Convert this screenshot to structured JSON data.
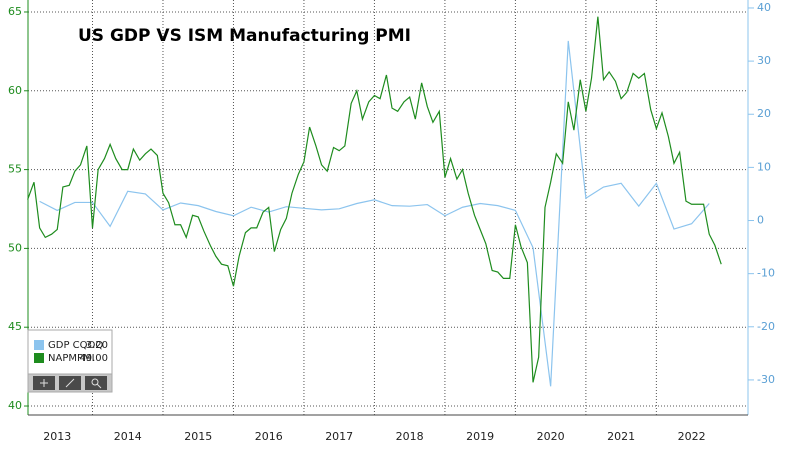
{
  "chart_data": {
    "type": "line",
    "title": "US GDP VS ISM Manufacturing PMI",
    "xlim": [
      2013.085,
      2023.3
    ],
    "xticks": [
      2013,
      2014,
      2015,
      2016,
      2017,
      2018,
      2019,
      2020,
      2021,
      2022
    ],
    "ylim": [
      39.43,
      65.76
    ],
    "yticks": [
      40,
      45,
      50,
      55,
      60,
      65
    ],
    "y2lim": [
      -36.6,
      41.5
    ],
    "y2ticks": [
      -30,
      -20,
      -10,
      0,
      10,
      20,
      30,
      40
    ],
    "grid": true,
    "legend": "lower left",
    "series": [
      {
        "name": "GDP CQOQ",
        "color": "#8cc4ee",
        "axis": "y2",
        "last_value_label": "3.20",
        "x": [
          2013.25,
          2013.5,
          2013.75,
          2014.0,
          2014.25,
          2014.5,
          2014.75,
          2015.0,
          2015.25,
          2015.5,
          2015.75,
          2016.0,
          2016.25,
          2016.5,
          2016.75,
          2017.0,
          2017.25,
          2017.5,
          2017.75,
          2018.0,
          2018.25,
          2018.5,
          2018.75,
          2019.0,
          2019.25,
          2019.5,
          2019.75,
          2020.0,
          2020.25,
          2020.5,
          2020.75,
          2021.0,
          2021.25,
          2021.5,
          2021.75,
          2022.0,
          2022.25,
          2022.5,
          2022.75
        ],
        "values": [
          3.6,
          1.9,
          3.4,
          3.4,
          -1.1,
          5.5,
          5.0,
          2.0,
          3.3,
          2.8,
          1.7,
          0.9,
          2.5,
          1.6,
          2.6,
          2.3,
          2.0,
          2.2,
          3.2,
          3.9,
          2.8,
          2.7,
          3.0,
          0.9,
          2.5,
          3.2,
          2.8,
          1.9,
          -5.1,
          -31.2,
          33.8,
          4.2,
          6.3,
          7.0,
          2.7,
          7.0,
          -1.6,
          -0.6,
          3.2
        ]
      },
      {
        "name": "NAPMPMI",
        "color": "#1e8c1e",
        "axis": "y",
        "last_value_label": "49.00",
        "x": [
          2013.08,
          2013.17,
          2013.25,
          2013.33,
          2013.42,
          2013.5,
          2013.58,
          2013.67,
          2013.75,
          2013.83,
          2013.92,
          2014.0,
          2014.08,
          2014.17,
          2014.25,
          2014.33,
          2014.42,
          2014.5,
          2014.58,
          2014.67,
          2014.75,
          2014.83,
          2014.92,
          2015.0,
          2015.08,
          2015.17,
          2015.25,
          2015.33,
          2015.42,
          2015.5,
          2015.58,
          2015.67,
          2015.75,
          2015.83,
          2015.92,
          2016.0,
          2016.08,
          2016.17,
          2016.25,
          2016.33,
          2016.42,
          2016.5,
          2016.58,
          2016.67,
          2016.75,
          2016.83,
          2016.92,
          2017.0,
          2017.08,
          2017.17,
          2017.25,
          2017.33,
          2017.42,
          2017.5,
          2017.58,
          2017.67,
          2017.75,
          2017.83,
          2017.92,
          2018.0,
          2018.08,
          2018.17,
          2018.25,
          2018.33,
          2018.42,
          2018.5,
          2018.58,
          2018.67,
          2018.75,
          2018.83,
          2018.92,
          2019.0,
          2019.08,
          2019.17,
          2019.25,
          2019.33,
          2019.42,
          2019.5,
          2019.58,
          2019.67,
          2019.75,
          2019.83,
          2019.92,
          2020.0,
          2020.08,
          2020.17,
          2020.25,
          2020.33,
          2020.42,
          2020.5,
          2020.58,
          2020.67,
          2020.75,
          2020.83,
          2020.92,
          2021.0,
          2021.08,
          2021.17,
          2021.25,
          2021.33,
          2021.42,
          2021.5,
          2021.58,
          2021.67,
          2021.75,
          2021.83,
          2021.92,
          2022.0,
          2022.08,
          2022.17,
          2022.25,
          2022.33,
          2022.42,
          2022.5,
          2022.58,
          2022.67,
          2022.75,
          2022.83,
          2022.92
        ],
        "values": [
          53.1,
          54.2,
          51.3,
          50.7,
          50.9,
          51.2,
          53.9,
          54.0,
          54.9,
          55.3,
          56.5,
          51.3,
          55.0,
          55.7,
          56.6,
          55.7,
          55.0,
          55.0,
          56.3,
          55.6,
          56.0,
          56.3,
          55.9,
          53.5,
          52.9,
          51.5,
          51.5,
          50.7,
          52.1,
          52.0,
          51.1,
          50.2,
          49.5,
          49.0,
          48.9,
          47.6,
          49.5,
          51.0,
          51.3,
          51.3,
          52.3,
          52.6,
          49.8,
          51.2,
          51.9,
          53.5,
          54.7,
          55.5,
          57.7,
          56.5,
          55.3,
          54.9,
          56.4,
          56.2,
          56.5,
          59.2,
          60.0,
          58.2,
          59.3,
          59.7,
          59.5,
          61.0,
          58.9,
          58.7,
          59.3,
          59.6,
          58.2,
          60.5,
          59.0,
          58.0,
          58.7,
          54.5,
          55.7,
          54.4,
          55.0,
          53.5,
          52.1,
          51.2,
          50.3,
          48.6,
          48.5,
          48.1,
          48.1,
          51.5,
          50.1,
          49.1,
          41.5,
          43.1,
          52.6,
          54.2,
          56.0,
          55.4,
          59.3,
          57.5,
          60.7,
          58.7,
          60.8,
          64.7,
          60.7,
          61.2,
          60.6,
          59.5,
          59.9,
          61.1,
          60.8,
          61.1,
          58.8,
          57.6,
          58.6,
          57.1,
          55.4,
          56.1,
          53.0,
          52.8,
          52.8,
          52.8,
          50.9,
          50.2,
          49.0
        ]
      }
    ]
  }
}
